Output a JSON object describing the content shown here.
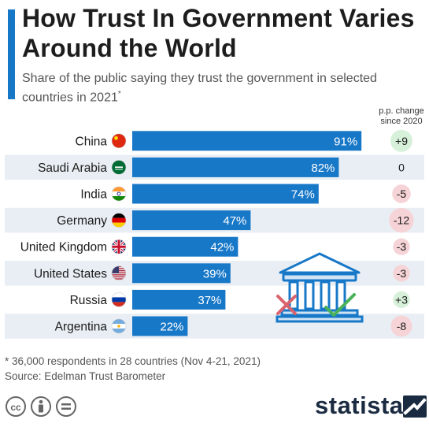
{
  "title": "How Trust In Government Varies Around the World",
  "subtitle": "Share of the public saying they trust the government in selected countries in 2021",
  "subtitle_marker": "*",
  "change_header": "p.p. change since 2020",
  "footnote": "* 36,000 respondents in 28 countries (Nov 4-21, 2021)",
  "source": "Source: Edelman Trust Barometer",
  "brand": "statista",
  "colors": {
    "bar": "#1878c8",
    "row_shade": "#e9eef4",
    "positive_bubble": "#d7f0d9",
    "negative_bubble": "#f6d3d6",
    "accent": "#1878c8"
  },
  "icons": [
    "cc-icon",
    "attribution-icon",
    "no-derivatives-icon",
    "government-building-icon",
    "cross-icon",
    "check-icon"
  ],
  "chart_data": {
    "type": "bar",
    "orientation": "horizontal",
    "categories": [
      "China",
      "Saudi Arabia",
      "India",
      "Germany",
      "United Kingdom",
      "United States",
      "Russia",
      "Argentina"
    ],
    "values": [
      91,
      82,
      74,
      47,
      42,
      39,
      37,
      22
    ],
    "value_labels": [
      "91%",
      "82%",
      "74%",
      "47%",
      "42%",
      "39%",
      "37%",
      "22%"
    ],
    "change": [
      9,
      0,
      -5,
      -12,
      -3,
      -3,
      3,
      -8
    ],
    "change_labels": [
      "+9",
      "0",
      "-5",
      "-12",
      "-3",
      "-3",
      "+3",
      "-8"
    ],
    "xlim": [
      0,
      100
    ],
    "unit": "%"
  }
}
